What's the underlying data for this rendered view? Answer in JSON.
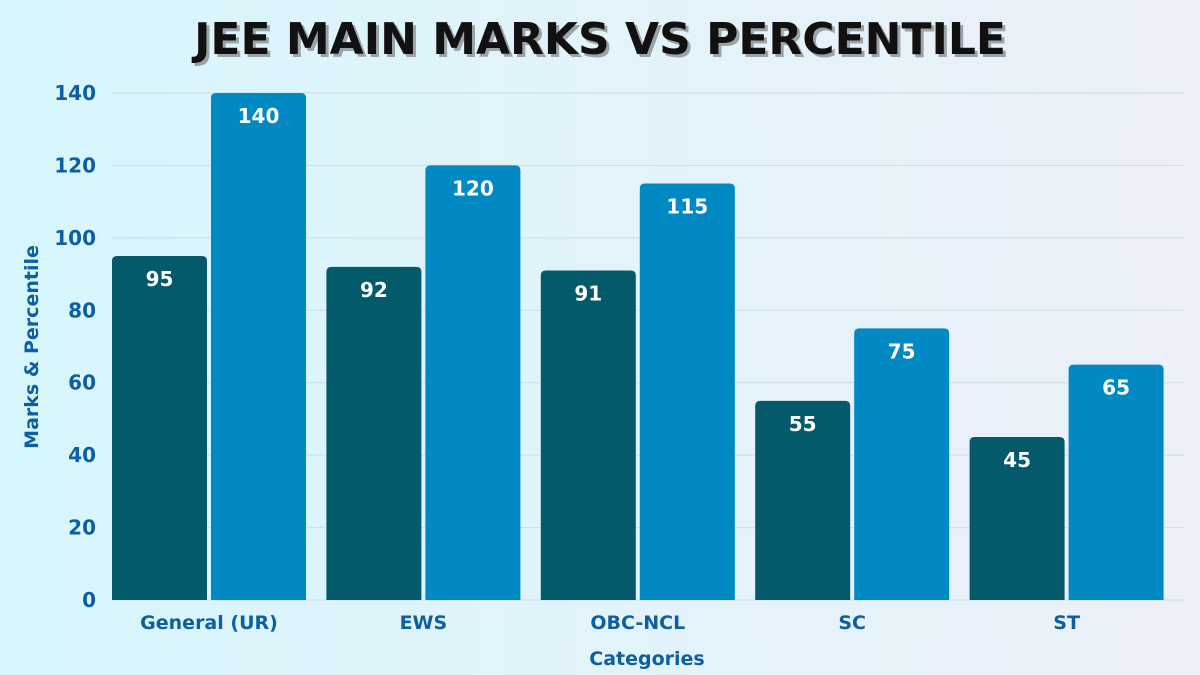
{
  "chart_data": {
    "type": "bar",
    "title": "JEE MAIN MARKS VS PERCENTILE",
    "xlabel": "Categories",
    "ylabel": "Marks & Percentile",
    "categories": [
      "General (UR)",
      "EWS",
      "OBC-NCL",
      "SC",
      "ST"
    ],
    "series": [
      {
        "values": [
          95,
          92,
          91,
          55,
          45
        ],
        "color": "#045a6b"
      },
      {
        "values": [
          140,
          120,
          115,
          75,
          65
        ],
        "color": "#0089c3"
      }
    ],
    "ylim": [
      0,
      140
    ],
    "yticks": [
      0,
      20,
      40,
      60,
      80,
      100,
      120,
      140
    ],
    "grid": true,
    "data_labels": true,
    "legend": "none"
  }
}
